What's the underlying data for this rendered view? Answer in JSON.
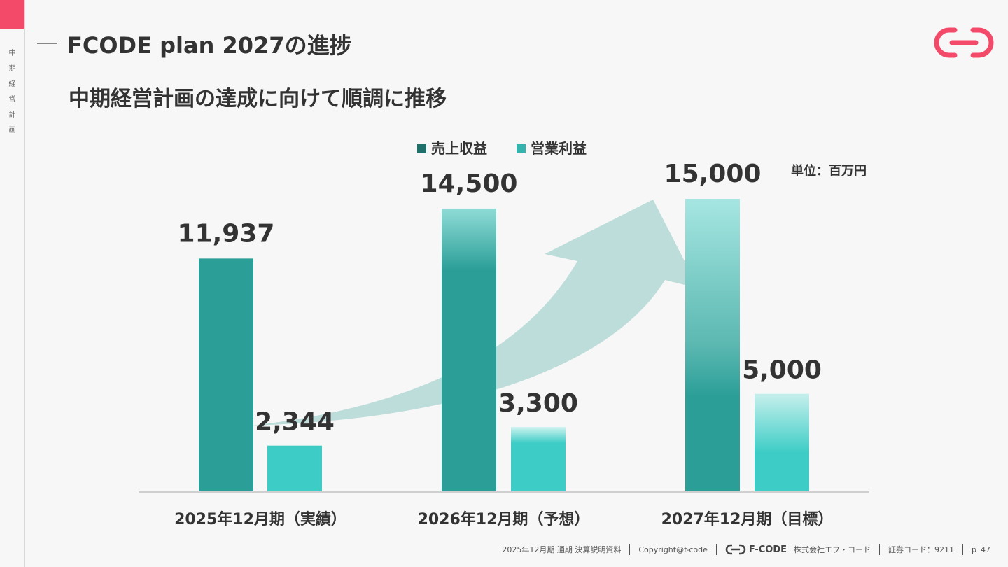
{
  "header": {
    "sidebar_label": "中期経営計画",
    "title": "FCODE plan 2027の進捗",
    "subtitle": "中期経営計画の達成に向けて順調に推移"
  },
  "colors": {
    "accent": "#f44a6a",
    "revenue": "#2a9e97",
    "profit": "#3ecdc6",
    "revenue_legend": "#1f6f6b",
    "profit_legend": "#35b3ad",
    "arrow": "#a9d4d2"
  },
  "chart_data": {
    "type": "bar",
    "unit_label": "単位：百万円",
    "categories": [
      "2025年12月期（実績）",
      "2026年12月期（予想）",
      "2027年12月期（目標）"
    ],
    "series": [
      {
        "name": "売上収益",
        "values": [
          11937,
          14500,
          15000
        ],
        "labels": [
          "11,937",
          "14,500",
          "15,000"
        ]
      },
      {
        "name": "営業利益",
        "values": [
          2344,
          3300,
          5000
        ],
        "labels": [
          "2,344",
          "3,300",
          "5,000"
        ]
      }
    ],
    "ylim": [
      0,
      15000
    ],
    "grid": false,
    "legend": "top-center"
  },
  "footer": {
    "document": "2025年12月期 通期 決算説明資料",
    "copyright": "Copyright@f-code",
    "brand": "F-CODE",
    "company": "株式会社エフ・コード",
    "stock_code": "証券コード：9211",
    "page_prefix": "p",
    "page_number": "47"
  }
}
